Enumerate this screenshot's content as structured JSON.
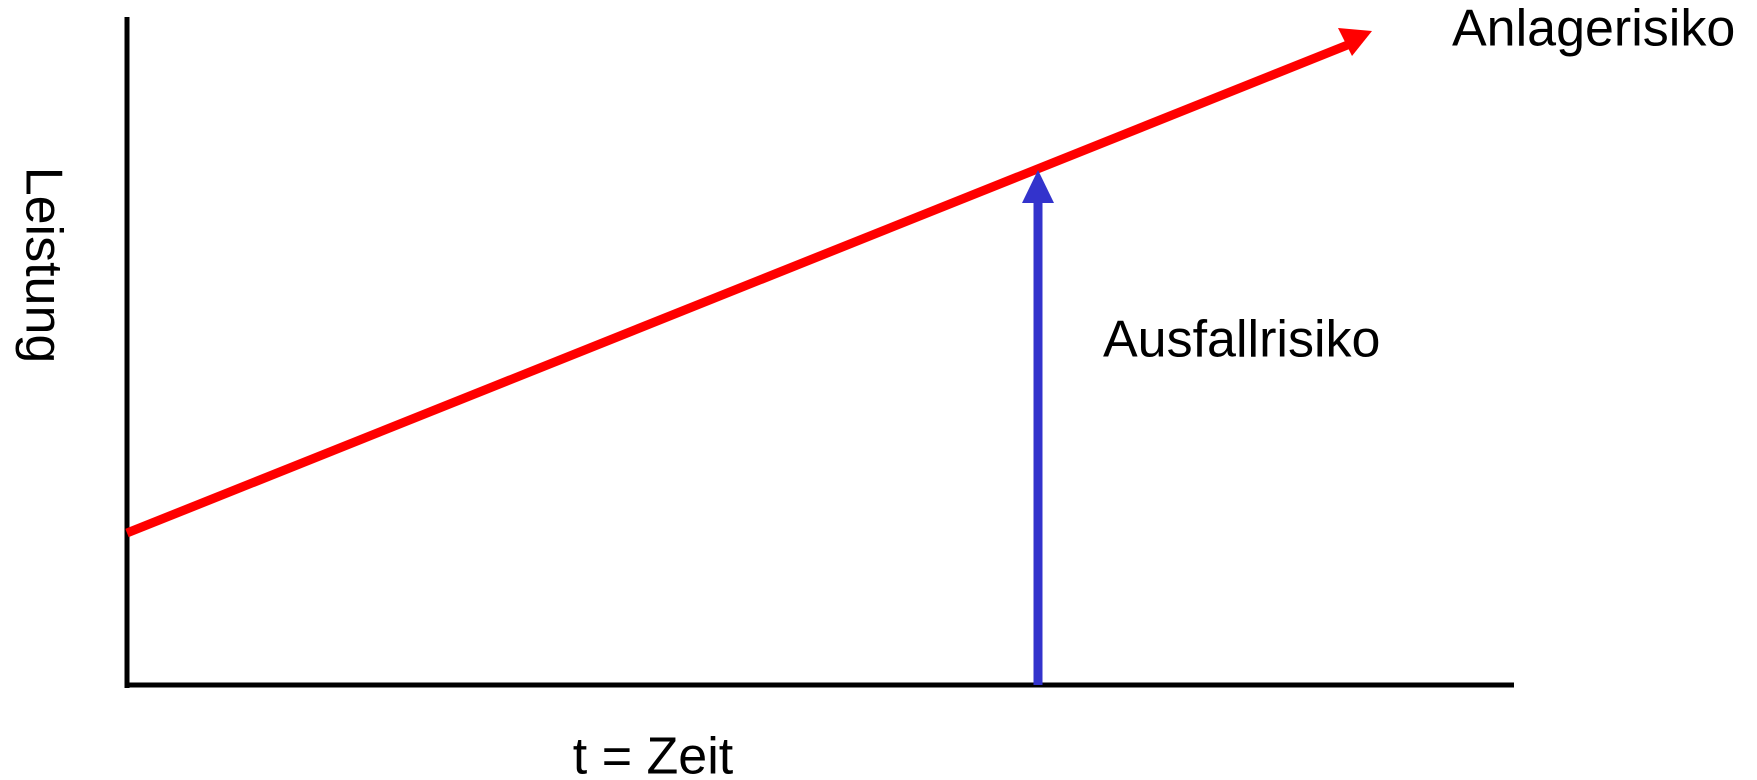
{
  "axes": {
    "x_label": "t = Zeit",
    "y_label": "Leistung"
  },
  "labels": {
    "trend": "Anlagerisiko",
    "gap": "Ausfallrisiko"
  }
}
